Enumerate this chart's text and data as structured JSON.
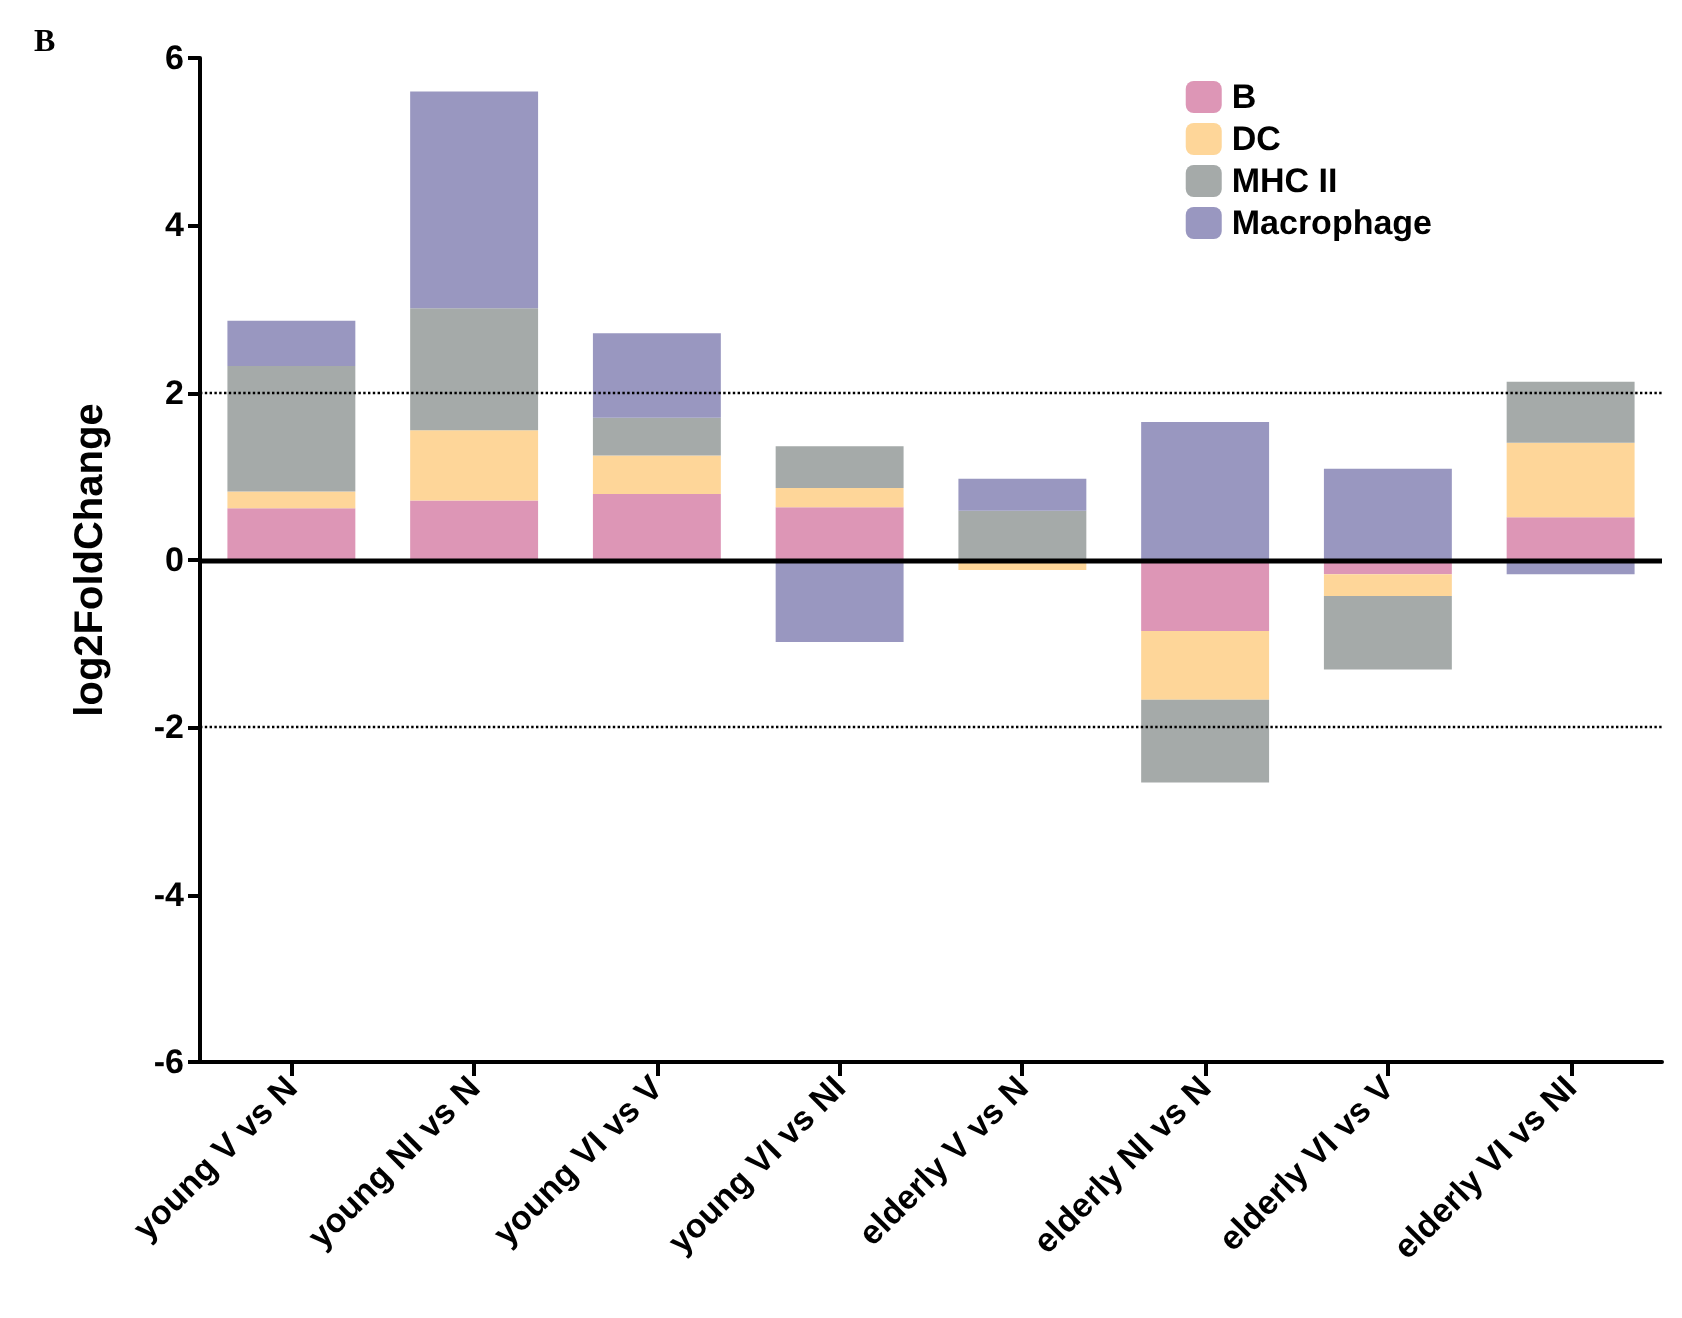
{
  "chart_data": {
    "type": "bar",
    "title": "B",
    "ylabel": "log2FoldChange",
    "stacked": true,
    "categories": [
      "young V vs N",
      "young NI vs N",
      "young VI vs V",
      "young VI vs NI",
      "elderly V vs N",
      "elderly NI vs N",
      "elderly VI vs V",
      "elderly VI vs NI"
    ],
    "series": [
      {
        "name": "B",
        "color": "#dd96b6",
        "values": [
          0.62,
          0.71,
          0.79,
          0.63,
          0,
          -0.85,
          -0.17,
          0.51
        ]
      },
      {
        "name": "DC",
        "color": "#fed699",
        "values": [
          0.2,
          0.84,
          0.46,
          0.23,
          -0.12,
          -0.82,
          -0.26,
          0.89
        ]
      },
      {
        "name": "MHC II",
        "color": "#a5aaa9",
        "values": [
          1.5,
          1.46,
          0.45,
          0.5,
          0.59,
          -0.99,
          -0.88,
          0.73
        ]
      },
      {
        "name": "Macrophage",
        "color": "#9997c0",
        "values": [
          0.54,
          2.59,
          1.01,
          -0.98,
          0.38,
          1.65,
          1.09,
          -0.17
        ]
      }
    ],
    "ylim": [
      -6,
      6
    ],
    "yticks": [
      -6,
      -4,
      -2,
      0,
      2,
      4,
      6
    ],
    "grid": false,
    "legend": "top right",
    "ref_lines": [
      {
        "axis": "y",
        "value": 2,
        "color": "#000000",
        "line_style": "dotted"
      },
      {
        "axis": "y",
        "value": -2,
        "color": "#000000",
        "line_style": "dotted"
      },
      {
        "axis": "y",
        "value": 0,
        "color": "#000000",
        "line_style": "solid"
      }
    ]
  }
}
